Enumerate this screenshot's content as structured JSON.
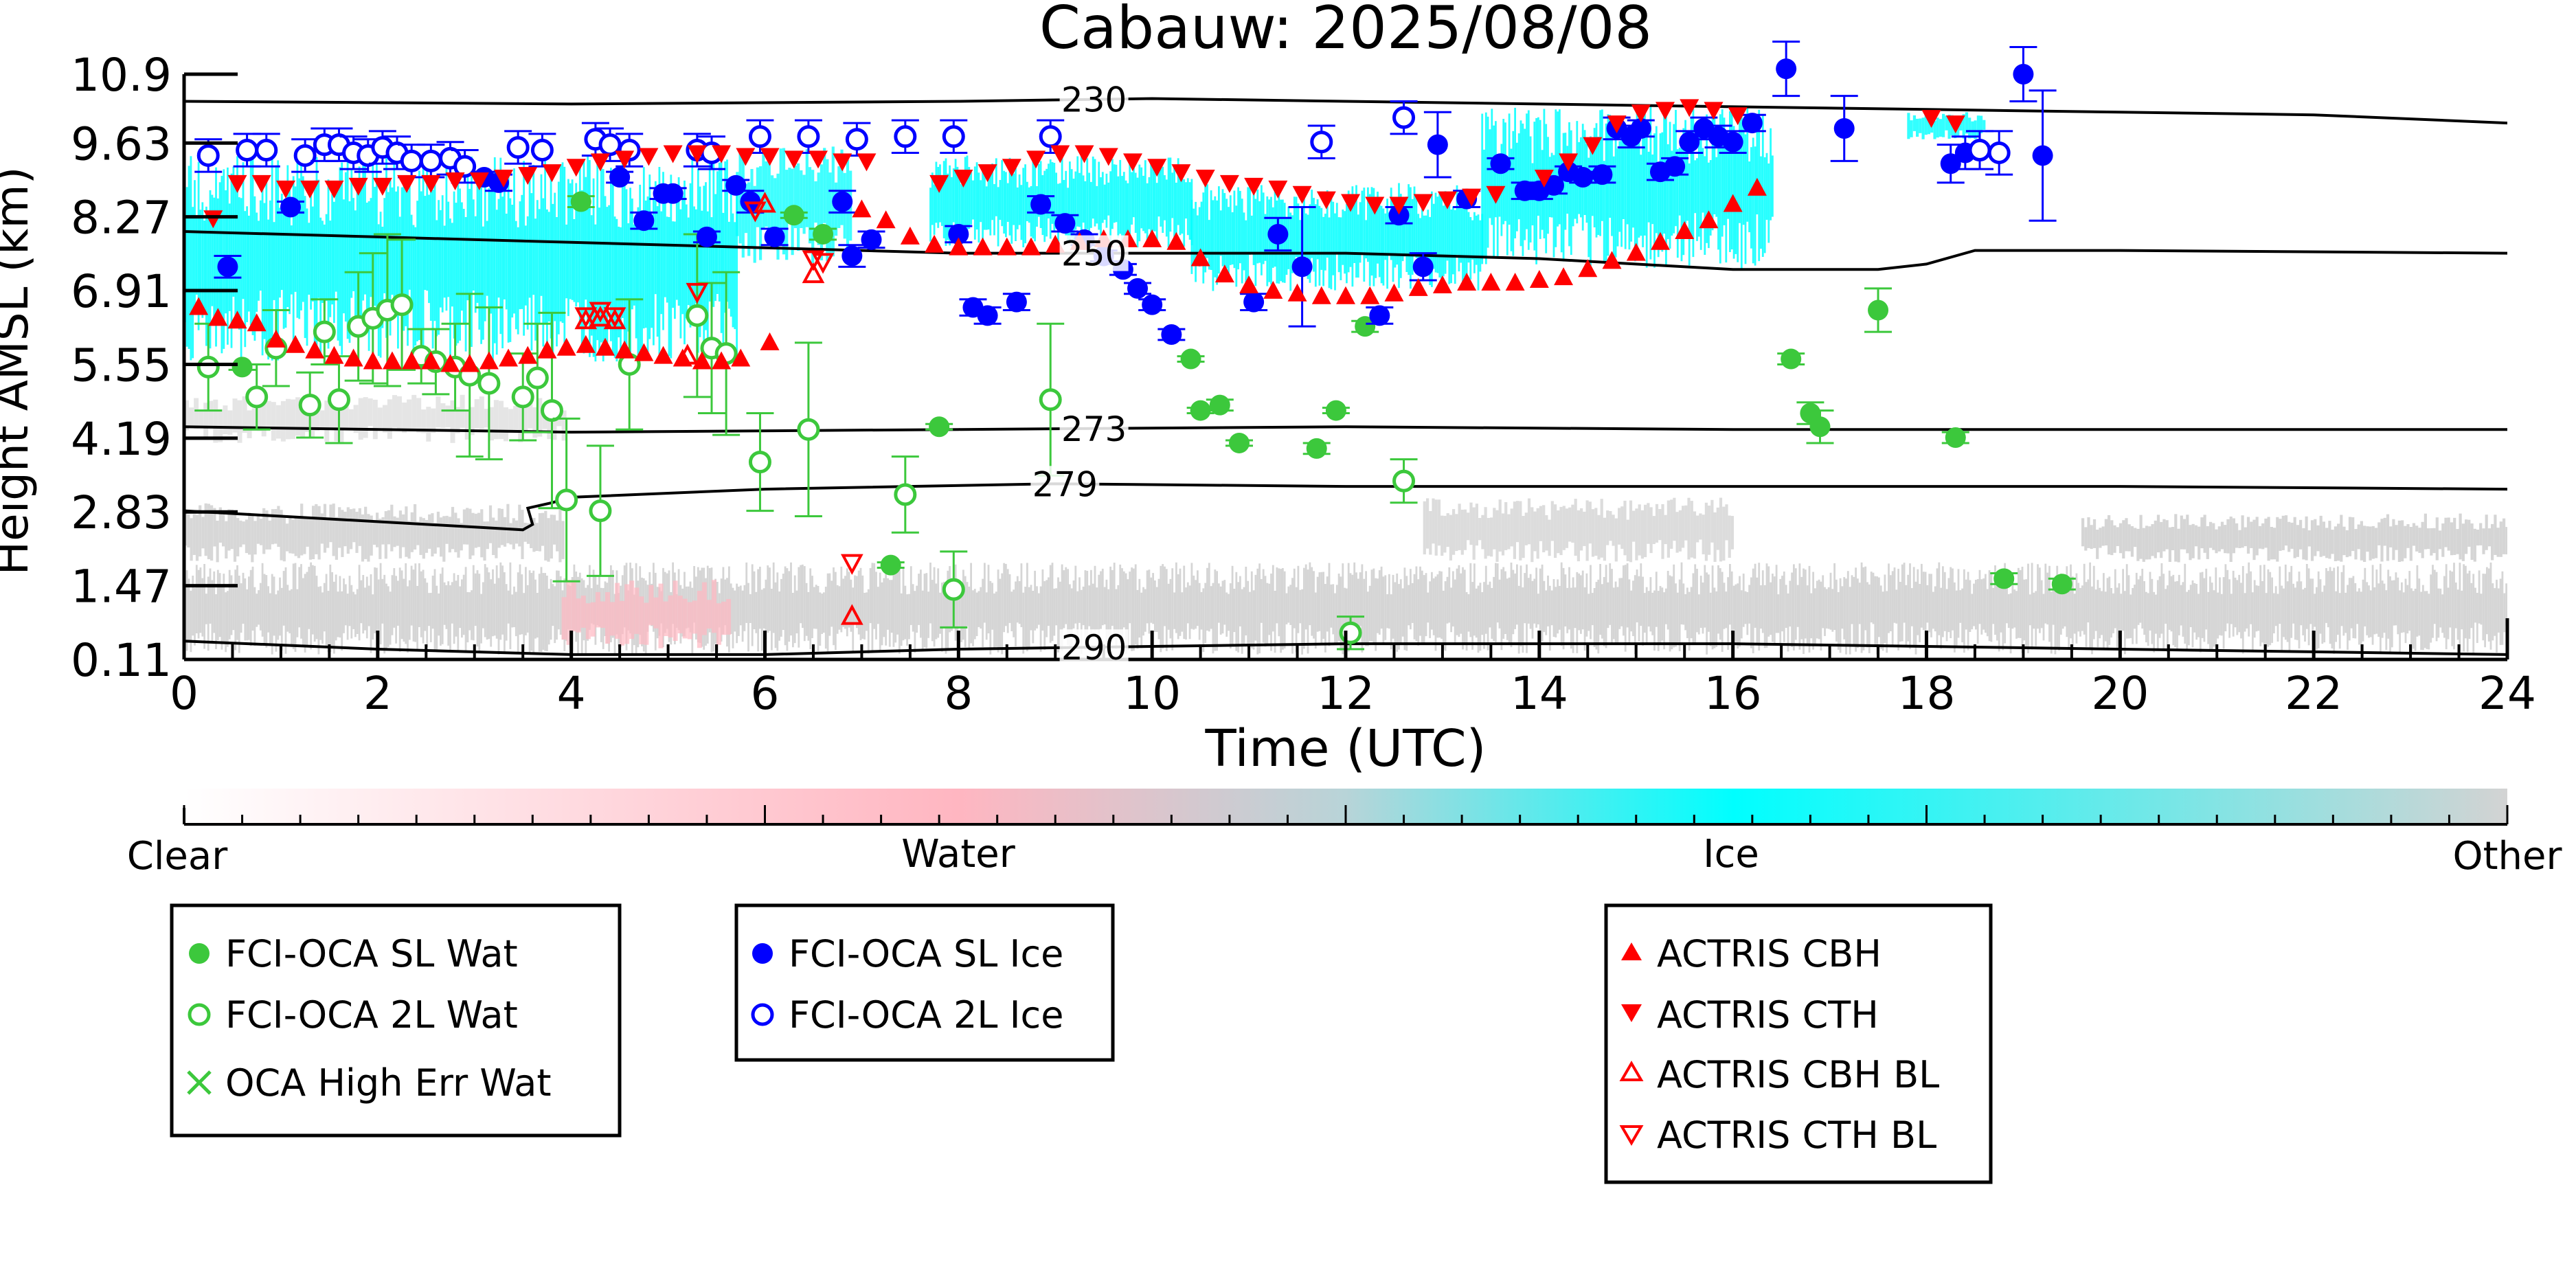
{
  "chart_data": {
    "type": "scatter",
    "title": "Cabauw: 2025/08/08",
    "xlabel": "Time (UTC)",
    "ylabel": "Height AMSL (km)",
    "xlim": [
      0,
      24
    ],
    "ylim": [
      0.11,
      10.9
    ],
    "x_ticks": [
      "0",
      "2",
      "4",
      "6",
      "8",
      "10",
      "12",
      "14",
      "16",
      "18",
      "20",
      "22",
      "24"
    ],
    "y_ticks": [
      "0.11",
      "1.47",
      "2.83",
      "4.19",
      "5.55",
      "6.91",
      "8.27",
      "9.63",
      "10.9"
    ],
    "grid": false,
    "colors": {
      "clear": "#ffffff",
      "water": "#ffb6c1",
      "ice": "#00ffff",
      "other": "#d3d3d3",
      "sl_wat": "#3cc83c",
      "ice_pt": "#0000ff",
      "actris": "#ff0000"
    },
    "isotherms": [
      {
        "label": "230",
        "label_x": 9.4,
        "x": [
          0,
          4,
          8,
          10,
          12,
          14,
          16,
          18,
          20,
          22,
          24
        ],
        "y": [
          10.4,
          10.35,
          10.4,
          10.45,
          10.4,
          10.35,
          10.3,
          10.25,
          10.2,
          10.15,
          10.0
        ]
      },
      {
        "label": "250",
        "label_x": 9.4,
        "x": [
          0,
          2,
          4,
          6,
          8,
          10,
          12,
          14,
          16,
          17.5,
          18,
          18.5,
          20,
          24
        ],
        "y": [
          8.0,
          7.9,
          7.8,
          7.7,
          7.6,
          7.6,
          7.6,
          7.5,
          7.3,
          7.3,
          7.4,
          7.65,
          7.65,
          7.6
        ]
      },
      {
        "label": "273",
        "label_x": 9.4,
        "x": [
          0,
          4,
          8,
          12,
          16,
          20,
          24
        ],
        "y": [
          4.4,
          4.3,
          4.35,
          4.4,
          4.35,
          4.35,
          4.35
        ]
      },
      {
        "label": "279",
        "label_x": 9.1,
        "x": [
          0,
          1,
          2,
          3,
          3.5,
          3.6,
          3.55,
          3.8,
          4,
          6,
          9,
          12,
          16,
          20,
          24
        ],
        "y": [
          2.85,
          2.75,
          2.65,
          2.55,
          2.5,
          2.6,
          2.9,
          3.0,
          3.1,
          3.25,
          3.35,
          3.3,
          3.3,
          3.3,
          3.25
        ]
      },
      {
        "label": "290",
        "label_x": 9.4,
        "x": [
          0,
          2,
          4,
          6,
          8,
          10,
          12,
          14,
          16,
          18,
          20,
          22,
          24
        ],
        "y": [
          0.45,
          0.3,
          0.2,
          0.2,
          0.3,
          0.35,
          0.4,
          0.4,
          0.4,
          0.35,
          0.3,
          0.25,
          0.2
        ]
      }
    ],
    "colorbar": {
      "labels": [
        "Clear",
        "Water",
        "Ice",
        "Other"
      ]
    },
    "legends": [
      {
        "entries": [
          {
            "label": "FCI-OCA SL Wat",
            "marker": "filled-circle",
            "color": "#3cc83c"
          },
          {
            "label": "FCI-OCA 2L Wat",
            "marker": "open-circle",
            "color": "#3cc83c"
          },
          {
            "label": "OCA High Err Wat",
            "marker": "cross",
            "color": "#3cc83c"
          }
        ]
      },
      {
        "entries": [
          {
            "label": "FCI-OCA SL Ice",
            "marker": "filled-circle",
            "color": "#0000ff"
          },
          {
            "label": "FCI-OCA 2L Ice",
            "marker": "open-circle",
            "color": "#0000ff"
          }
        ]
      },
      {
        "entries": [
          {
            "label": "ACTRIS CBH",
            "marker": "triangle-up",
            "color": "#ff0000"
          },
          {
            "label": "ACTRIS CTH",
            "marker": "triangle-down",
            "color": "#ff0000"
          },
          {
            "label": "ACTRIS CBH BL",
            "marker": "open-triangle-up",
            "color": "#ff0000"
          },
          {
            "label": "ACTRIS CTH BL",
            "marker": "open-triangle-down",
            "color": "#ff0000"
          }
        ]
      }
    ],
    "series": [
      {
        "name": "FCI-OCA SL Wat",
        "marker": "filled-circle",
        "color": "#3cc83c",
        "x": [
          0.6,
          4.1,
          6.3,
          6.6,
          7.3,
          7.8,
          10.4,
          10.5,
          10.7,
          10.9,
          11.7,
          11.9,
          12.2,
          16.6,
          16.8,
          16.9,
          17.5,
          18.3,
          18.8,
          19.4
        ],
        "y": [
          5.5,
          8.55,
          8.3,
          7.95,
          1.85,
          4.4,
          5.65,
          4.7,
          4.8,
          4.1,
          4.0,
          4.7,
          6.25,
          5.65,
          4.65,
          4.4,
          6.55,
          4.2,
          1.6,
          1.5
        ],
        "err": [
          0.05,
          0.1,
          0.05,
          0.1,
          0.05,
          0.05,
          0.05,
          0.05,
          0.1,
          0.05,
          0.1,
          0.05,
          0.1,
          0.1,
          0.2,
          0.3,
          0.4,
          0.1,
          0.1,
          0.1
        ]
      },
      {
        "name": "FCI-OCA 2L Wat",
        "marker": "open-circle",
        "color": "#3cc83c",
        "x": [
          0.25,
          0.75,
          0.95,
          1.3,
          1.45,
          1.6,
          1.8,
          1.95,
          2.1,
          2.25,
          2.45,
          2.6,
          2.8,
          2.95,
          3.15,
          3.5,
          3.65,
          3.8,
          3.95,
          4.3,
          4.6,
          5.3,
          5.45,
          5.6,
          5.95,
          6.45,
          7.45,
          7.95,
          8.95,
          12.05,
          12.6
        ],
        "y": [
          5.5,
          4.95,
          5.85,
          4.8,
          6.15,
          4.9,
          6.25,
          6.4,
          6.55,
          6.65,
          5.7,
          5.6,
          5.5,
          5.35,
          5.2,
          4.95,
          5.3,
          4.7,
          3.05,
          2.85,
          5.55,
          6.45,
          5.85,
          5.75,
          3.75,
          4.35,
          3.15,
          1.4,
          4.9,
          0.6,
          3.4
        ],
        "err": [
          0.8,
          0.6,
          0.7,
          0.6,
          0.6,
          0.8,
          1.0,
          1.2,
          1.4,
          1.2,
          0.5,
          0.6,
          0.8,
          1.5,
          1.4,
          0.8,
          1.0,
          1.8,
          1.5,
          1.2,
          1.2,
          1.5,
          1.2,
          1.5,
          0.9,
          1.6,
          0.7,
          0.7,
          1.4,
          0.3,
          0.4
        ]
      },
      {
        "name": "OCA High Err Wat",
        "marker": "cross",
        "color": "#3cc83c",
        "x": [],
        "y": [],
        "err": []
      },
      {
        "name": "FCI-OCA SL Ice",
        "marker": "filled-circle",
        "color": "#0000ff",
        "x": [
          0.45,
          1.1,
          3.1,
          3.25,
          4.5,
          4.75,
          4.95,
          5.05,
          5.4,
          5.7,
          5.85,
          6.1,
          6.8,
          6.9,
          7.1,
          8.0,
          8.15,
          8.3,
          8.6,
          8.85,
          9.1,
          9.3,
          9.5,
          9.7,
          9.85,
          10.0,
          10.2,
          11.05,
          11.3,
          11.55,
          12.35,
          12.55,
          12.8,
          12.95,
          13.25,
          13.6,
          13.85,
          14.0,
          14.15,
          14.3,
          14.45,
          14.65,
          14.8,
          14.95,
          15.05,
          15.25,
          15.4,
          15.55,
          15.7,
          15.85,
          16.0,
          16.2,
          16.55,
          17.15,
          18.25,
          18.4,
          19.0,
          19.2
        ],
        "y": [
          7.35,
          8.45,
          9.0,
          8.9,
          9.0,
          8.2,
          8.7,
          8.7,
          7.9,
          8.85,
          8.55,
          7.9,
          8.55,
          7.55,
          7.85,
          7.95,
          6.6,
          6.45,
          6.7,
          8.5,
          8.15,
          7.85,
          7.55,
          7.3,
          6.95,
          6.65,
          6.1,
          6.7,
          7.95,
          7.35,
          6.45,
          8.3,
          7.35,
          9.6,
          8.6,
          9.25,
          8.75,
          8.75,
          8.85,
          9.1,
          9.0,
          9.05,
          9.9,
          9.75,
          9.9,
          9.1,
          9.2,
          9.65,
          9.9,
          9.75,
          9.65,
          10.0,
          11.0,
          9.9,
          9.25,
          9.45,
          10.9,
          9.4
        ],
        "err": [
          0.2,
          0.1,
          0.1,
          0.15,
          0.1,
          0.15,
          0.1,
          0.1,
          0.1,
          0.1,
          0.2,
          0.15,
          0.2,
          0.2,
          0.15,
          0.15,
          0.15,
          0.15,
          0.15,
          0.15,
          0.15,
          0.1,
          0.1,
          0.1,
          0.1,
          0.1,
          0.1,
          0.15,
          0.3,
          1.1,
          0.15,
          0.15,
          0.25,
          0.6,
          0.15,
          0.1,
          0.15,
          0.15,
          0.15,
          0.1,
          0.1,
          0.15,
          0.2,
          0.2,
          0.15,
          0.15,
          0.15,
          0.2,
          0.2,
          0.2,
          0.2,
          0.15,
          0.5,
          0.6,
          0.35,
          0.3,
          0.5,
          1.2
        ]
      },
      {
        "name": "FCI-OCA 2L Ice",
        "marker": "open-circle",
        "color": "#0000ff",
        "x": [
          0.25,
          0.65,
          0.85,
          1.25,
          1.45,
          1.6,
          1.75,
          1.9,
          2.05,
          2.2,
          2.35,
          2.55,
          2.75,
          2.9,
          3.45,
          3.7,
          4.25,
          4.4,
          4.6,
          5.3,
          5.45,
          5.95,
          6.45,
          6.95,
          7.45,
          7.95,
          8.95,
          11.75,
          12.6,
          18.55,
          18.75
        ],
        "y": [
          9.4,
          9.5,
          9.5,
          9.4,
          9.6,
          9.6,
          9.45,
          9.4,
          9.55,
          9.45,
          9.3,
          9.3,
          9.35,
          9.2,
          9.55,
          9.5,
          9.7,
          9.6,
          9.5,
          9.5,
          9.45,
          9.75,
          9.75,
          9.7,
          9.75,
          9.75,
          9.75,
          9.65,
          10.1,
          9.5,
          9.45
        ],
        "err": [
          0.3,
          0.3,
          0.3,
          0.3,
          0.3,
          0.3,
          0.3,
          0.3,
          0.3,
          0.3,
          0.3,
          0.3,
          0.3,
          0.3,
          0.3,
          0.3,
          0.3,
          0.3,
          0.3,
          0.3,
          0.3,
          0.3,
          0.3,
          0.3,
          0.3,
          0.3,
          0.3,
          0.3,
          0.3,
          0.35,
          0.4
        ]
      },
      {
        "name": "ACTRIS CBH",
        "marker": "triangle-up",
        "color": "#ff0000",
        "x": [
          0.15,
          0.35,
          0.55,
          0.75,
          0.95,
          1.15,
          1.35,
          1.55,
          1.75,
          1.95,
          2.15,
          2.35,
          2.55,
          2.75,
          2.95,
          3.15,
          3.35,
          3.55,
          3.75,
          3.95,
          4.15,
          4.35,
          4.55,
          4.75,
          4.95,
          5.15,
          5.35,
          5.55,
          5.75,
          6.05,
          7.0,
          7.25,
          7.5,
          7.75,
          8.0,
          8.25,
          8.5,
          8.75,
          9.0,
          9.25,
          9.5,
          9.75,
          10.0,
          10.25,
          10.5,
          10.75,
          11.0,
          11.25,
          11.5,
          11.75,
          12.0,
          12.25,
          12.5,
          12.75,
          13.0,
          13.25,
          13.5,
          13.75,
          14.0,
          14.25,
          14.5,
          14.75,
          15.0,
          15.25,
          15.5,
          15.75,
          16.0,
          16.25
        ],
        "y": [
          6.6,
          6.4,
          6.35,
          6.3,
          6.0,
          5.9,
          5.8,
          5.7,
          5.65,
          5.6,
          5.6,
          5.6,
          5.6,
          5.55,
          5.55,
          5.6,
          5.65,
          5.7,
          5.8,
          5.85,
          5.9,
          5.85,
          5.8,
          5.75,
          5.7,
          5.65,
          5.6,
          5.6,
          5.65,
          5.95,
          8.4,
          8.2,
          7.9,
          7.75,
          7.7,
          7.7,
          7.7,
          7.7,
          7.75,
          7.8,
          7.85,
          7.85,
          7.85,
          7.8,
          7.5,
          7.2,
          7.0,
          6.9,
          6.85,
          6.8,
          6.8,
          6.8,
          6.85,
          6.95,
          7.0,
          7.05,
          7.05,
          7.05,
          7.1,
          7.15,
          7.3,
          7.45,
          7.6,
          7.8,
          8.0,
          8.2,
          8.5,
          8.8
        ]
      },
      {
        "name": "ACTRIS CTH",
        "marker": "triangle-down",
        "color": "#ff0000",
        "x": [
          0.3,
          0.55,
          0.8,
          1.05,
          1.3,
          1.55,
          1.8,
          2.05,
          2.3,
          2.55,
          2.8,
          3.05,
          3.3,
          3.55,
          3.8,
          4.05,
          4.3,
          4.55,
          4.8,
          5.05,
          5.3,
          5.55,
          5.8,
          6.05,
          6.3,
          6.55,
          6.8,
          7.05,
          7.8,
          8.05,
          8.3,
          8.55,
          8.8,
          9.05,
          9.3,
          9.55,
          9.8,
          10.05,
          10.3,
          10.55,
          10.8,
          11.05,
          11.3,
          11.55,
          11.8,
          12.05,
          12.3,
          12.55,
          12.8,
          13.05,
          13.3,
          13.55,
          14.05,
          14.3,
          14.55,
          14.8,
          15.05,
          15.3,
          15.55,
          15.8,
          16.05,
          18.05,
          18.3
        ],
        "y": [
          8.25,
          8.9,
          8.9,
          8.8,
          8.8,
          8.8,
          8.85,
          8.85,
          8.9,
          8.9,
          8.95,
          8.95,
          9.0,
          9.05,
          9.1,
          9.2,
          9.3,
          9.35,
          9.4,
          9.45,
          9.45,
          9.45,
          9.4,
          9.4,
          9.35,
          9.35,
          9.3,
          9.3,
          8.9,
          9.0,
          9.1,
          9.2,
          9.35,
          9.45,
          9.45,
          9.4,
          9.3,
          9.2,
          9.1,
          9.0,
          8.9,
          8.85,
          8.8,
          8.7,
          8.6,
          8.55,
          8.5,
          8.5,
          8.55,
          8.6,
          8.65,
          8.7,
          9.0,
          9.3,
          9.6,
          10.0,
          10.2,
          10.25,
          10.3,
          10.25,
          10.15,
          10.1,
          10.0
        ]
      },
      {
        "name": "ACTRIS CBH BL",
        "marker": "open-triangle-up",
        "color": "#ff0000",
        "x": [
          4.15,
          4.3,
          4.45,
          5.2,
          6.0,
          6.5,
          6.9
        ],
        "y": [
          6.35,
          6.4,
          6.35,
          5.7,
          8.5,
          7.2,
          0.9
        ]
      },
      {
        "name": "ACTRIS CTH BL",
        "marker": "open-triangle-down",
        "color": "#ff0000",
        "x": [
          4.15,
          4.3,
          4.45,
          5.3,
          5.9,
          6.5,
          6.6,
          6.9
        ],
        "y": [
          6.45,
          6.55,
          6.45,
          6.9,
          8.4,
          7.5,
          7.45,
          1.9
        ]
      }
    ]
  }
}
